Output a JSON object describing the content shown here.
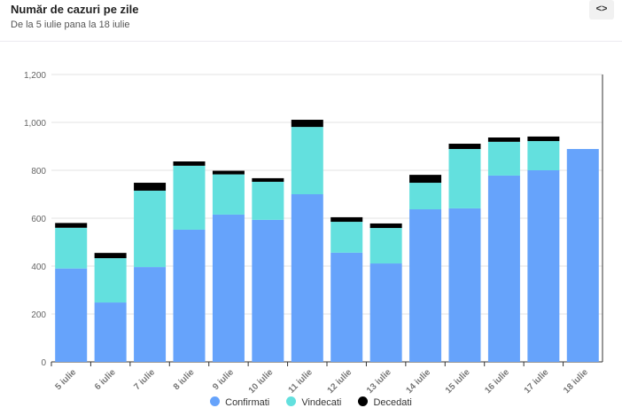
{
  "header": {
    "title": "Număr de cazuri pe zile",
    "subtitle": "De la 5 iulie pana la 18 iulie",
    "code_button": "<>"
  },
  "chart_data": {
    "type": "bar",
    "stacked": true,
    "categories": [
      "5 iulie",
      "6 iulie",
      "7 iulie",
      "8 iulie",
      "9 iulie",
      "10 iulie",
      "11 iulie",
      "12 iulie",
      "13 iulie",
      "14 iulie",
      "15 iulie",
      "16 iulie",
      "17 iulie",
      "18 iulie"
    ],
    "series": [
      {
        "name": "Confirmati",
        "color": "#66a3fb",
        "values": [
          390,
          248,
          396,
          552,
          615,
          593,
          700,
          456,
          411,
          637,
          641,
          778,
          800,
          889
        ]
      },
      {
        "name": "Vindecati",
        "color": "#63e0de",
        "values": [
          170,
          185,
          319,
          267,
          168,
          159,
          281,
          129,
          148,
          111,
          248,
          141,
          122,
          0
        ]
      },
      {
        "name": "Decedati",
        "color": "#000000",
        "values": [
          20,
          22,
          33,
          18,
          15,
          15,
          30,
          19,
          19,
          33,
          22,
          18,
          19,
          0
        ]
      }
    ],
    "ylim": [
      0,
      1200
    ],
    "yticks": [
      "0",
      "200",
      "400",
      "600",
      "800",
      "1,000",
      "1,200"
    ],
    "grid": true,
    "legend": "bottom"
  }
}
